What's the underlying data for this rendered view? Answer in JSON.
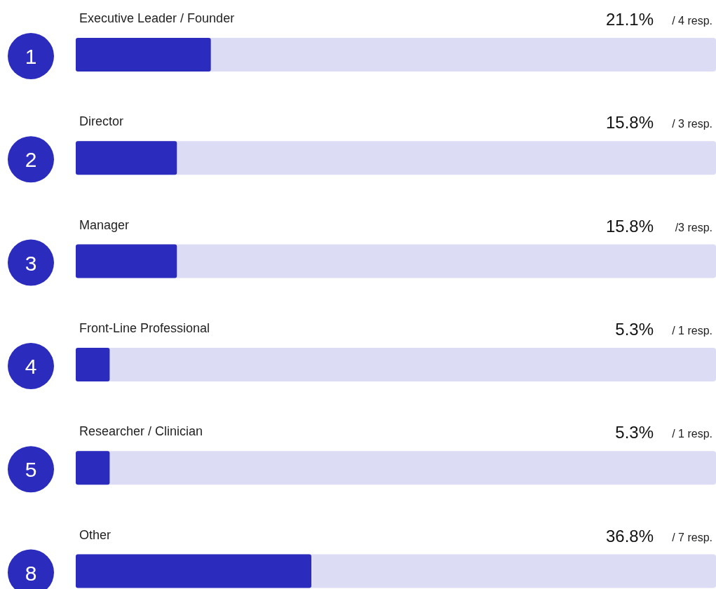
{
  "chart_data": {
    "type": "bar",
    "orientation": "horizontal",
    "categories": [
      "Executive Leader / Founder",
      "Director",
      "Manager",
      "Front-Line Professional",
      "Researcher / Clinician",
      "Other"
    ],
    "values": [
      21.1,
      15.8,
      15.8,
      5.3,
      5.3,
      36.8
    ],
    "value_labels": [
      "21.1%",
      "15.8%",
      "15.8%",
      "5.3%",
      "5.3%",
      "36.8%"
    ],
    "color": "#2b2bbd",
    "xlim": [
      0,
      100
    ],
    "grid": false,
    "legend": false,
    "annotations": [
      "1",
      "2",
      "3",
      "4",
      "5",
      "8",
      "/ 4 resp.",
      "/ 3 resp.",
      "/3 resp.",
      "/ 1 resp.",
      "/ 1 resp.",
      "/ 7 resp."
    ]
  }
}
